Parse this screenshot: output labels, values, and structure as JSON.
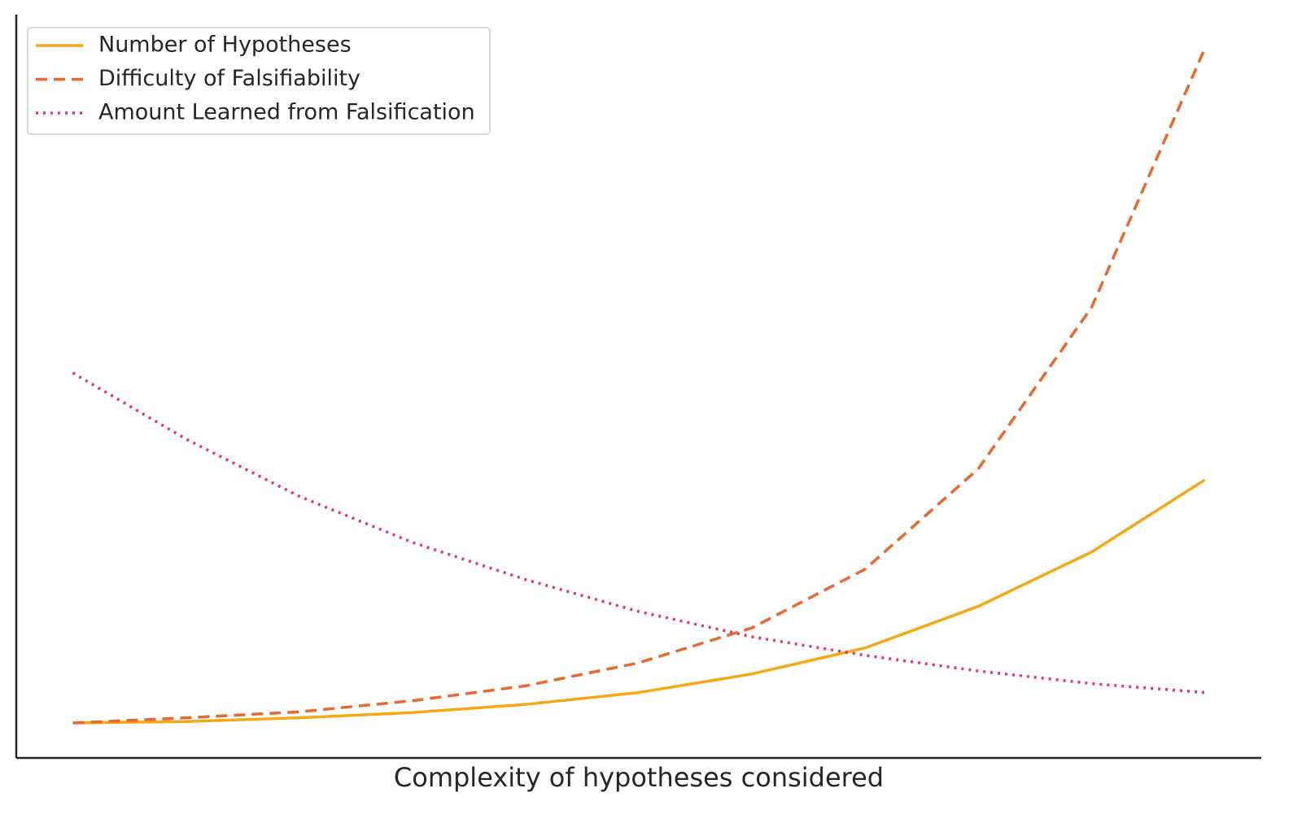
{
  "chart_data": {
    "type": "line",
    "xlabel": "Complexity of hypotheses considered",
    "x": [
      0,
      1,
      2,
      3,
      4,
      5,
      6,
      7,
      8,
      9,
      10
    ],
    "xlim": [
      -0.5,
      10.5
    ],
    "ylim": [
      0,
      100
    ],
    "legend": "upper-left",
    "series": [
      {
        "name": "Number of Hypotheses",
        "color": "#f5a714",
        "style": "solid",
        "values": [
          4.7,
          4.9,
          5.4,
          6.1,
          7.2,
          8.8,
          11.3,
          14.8,
          20.4,
          27.7,
          37.4
        ]
      },
      {
        "name": "Difficulty of Falsifiability",
        "color": "#e8692d",
        "style": "dashed",
        "values": [
          4.7,
          5.4,
          6.2,
          7.7,
          9.7,
          12.8,
          17.5,
          25.4,
          38.9,
          60.6,
          95.4
        ]
      },
      {
        "name": "Amount Learned from Falsification",
        "color": "#e8375a",
        "style": "dotted",
        "values": [
          51.8,
          42.9,
          35.2,
          29.0,
          24.0,
          19.7,
          16.3,
          13.8,
          11.7,
          10.0,
          8.8
        ]
      }
    ]
  }
}
